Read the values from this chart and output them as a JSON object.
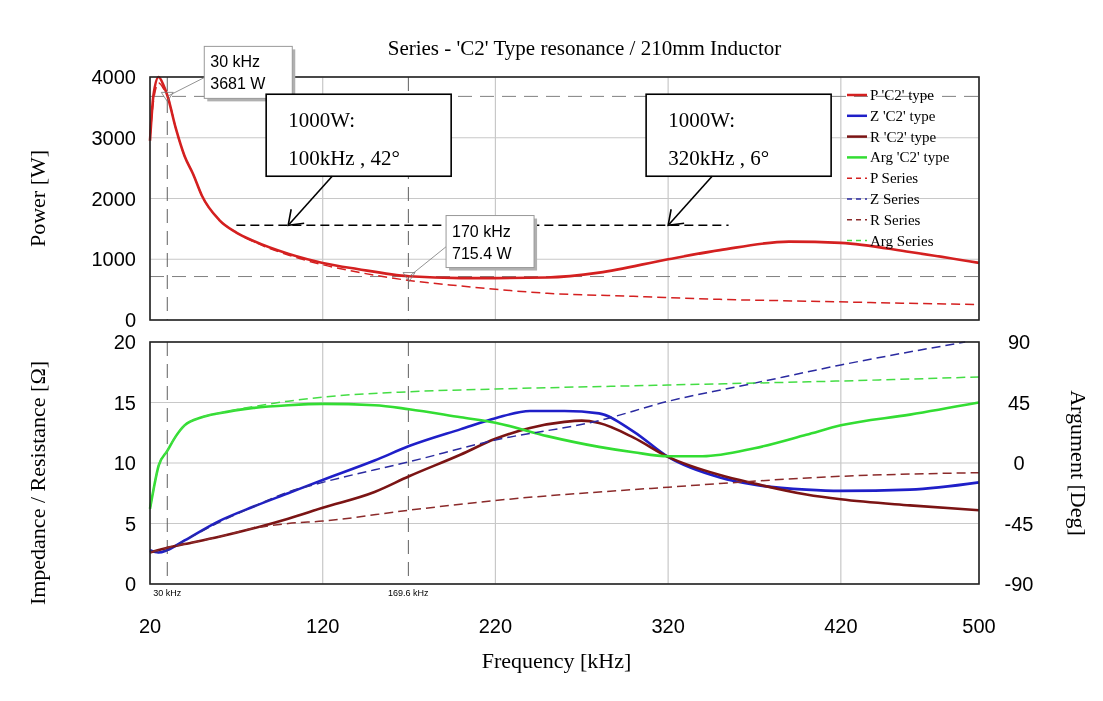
{
  "chart_data": [
    {
      "type": "line",
      "title": "Series - 'C2' Type resonance / 210mm Inductor",
      "ylabel": "Power [W]",
      "xlim": [
        20,
        500
      ],
      "xticks": [
        20,
        120,
        220,
        320,
        420,
        500
      ],
      "ylim": [
        0,
        4000
      ],
      "yticks": [
        0,
        1000,
        2000,
        3000,
        4000
      ],
      "tick_labels": "y",
      "grid": true,
      "legend": "top right",
      "series": [
        {
          "name": "P 'C2' type",
          "color": "#d42020",
          "line_style": "solid",
          "x": [
            20,
            22,
            25,
            28,
            30,
            35,
            40,
            45,
            50,
            60,
            70,
            80,
            100,
            120,
            140,
            170,
            200,
            220,
            250,
            280,
            320,
            350,
            390,
            420,
            460,
            500
          ],
          "values": [
            2950,
            3700,
            4000,
            3850,
            3700,
            3150,
            2700,
            2400,
            2050,
            1650,
            1440,
            1300,
            1090,
            940,
            840,
            720,
            690,
            690,
            700,
            780,
            1000,
            1150,
            1290,
            1270,
            1120,
            940
          ]
        },
        {
          "name": "P Series",
          "color": "#d42020",
          "line_style": "dashed",
          "x": [
            20,
            22,
            25,
            28,
            30,
            35,
            40,
            45,
            50,
            60,
            70,
            80,
            100,
            120,
            140,
            170,
            200,
            250,
            300,
            350,
            400,
            450,
            500
          ],
          "values": [
            3000,
            3600,
            3900,
            3800,
            3700,
            3150,
            2700,
            2400,
            2050,
            1650,
            1440,
            1290,
            1070,
            910,
            790,
            650,
            560,
            440,
            390,
            340,
            310,
            280,
            255
          ]
        },
        {
          "color": "#000000",
          "line_style": "dashed",
          "x": [
            70,
            355
          ],
          "values": [
            1560,
            1560
          ]
        }
      ],
      "ref_lines": [
        {
          "axis": "y",
          "value": 3681,
          "color": "#808080",
          "line_style": "dashed"
        },
        {
          "axis": "y",
          "value": 715.4,
          "color": "#808080",
          "line_style": "dashed"
        },
        {
          "axis": "x",
          "value": 30,
          "color": "#606060",
          "line_style": "dashed"
        },
        {
          "axis": "x",
          "value": 169.6,
          "color": "#606060",
          "line_style": "dashed"
        }
      ],
      "annotations": [
        {
          "text": "30 kHz\n3681 W",
          "x": 30,
          "y": 3681
        },
        {
          "text": "170 kHz\n715.4 W",
          "x": 170,
          "y": 715.4
        },
        {
          "text": "1000W:\n100kHz , 42°",
          "x": 100,
          "y": 1560
        },
        {
          "text": "1000W:\n320kHz , 6°",
          "x": 320,
          "y": 1560
        }
      ]
    },
    {
      "type": "line",
      "xlabel": "Frequency [kHz]",
      "ylabel": "Impedance / Resistance [Ω]",
      "y2label": "Argument [Deg]",
      "xlim": [
        20,
        500
      ],
      "xticks": [
        20,
        120,
        220,
        320,
        420,
        500
      ],
      "ylim": [
        0,
        20
      ],
      "yticks": [
        0,
        5,
        10,
        15,
        20
      ],
      "y2lim": [
        -90,
        90
      ],
      "y2ticks": [
        -90,
        -45,
        0,
        45,
        90
      ],
      "grid": true,
      "series": [
        {
          "name": "Z 'C2' type",
          "color": "#1f1fc8",
          "line_style": "solid",
          "x": [
            20,
            25,
            30,
            40,
            60,
            80,
            100,
            120,
            150,
            170,
            200,
            220,
            240,
            260,
            280,
            300,
            320,
            350,
            370,
            400,
            420,
            460,
            500
          ],
          "values": [
            2.8,
            2.6,
            2.8,
            3.6,
            5.2,
            6.4,
            7.5,
            8.6,
            10.2,
            11.4,
            12.8,
            13.7,
            14.3,
            14.3,
            14.1,
            12.6,
            10.5,
            8.8,
            8.2,
            7.8,
            7.7,
            7.8,
            8.4
          ]
        },
        {
          "name": "R 'C2' type",
          "color": "#7b1414",
          "line_style": "solid",
          "x": [
            20,
            25,
            30,
            40,
            60,
            80,
            100,
            120,
            150,
            170,
            200,
            220,
            240,
            260,
            270,
            280,
            300,
            320,
            350,
            370,
            400,
            420,
            460,
            500
          ],
          "values": [
            2.6,
            2.8,
            3.0,
            3.3,
            3.9,
            4.6,
            5.4,
            6.3,
            7.6,
            8.9,
            10.7,
            12.0,
            12.9,
            13.4,
            13.5,
            13.3,
            12.1,
            10.5,
            9.0,
            8.3,
            7.4,
            7.0,
            6.5,
            6.1
          ]
        },
        {
          "name": "Arg 'C2' type",
          "color": "#33dd33",
          "line_style": "solid",
          "axis": "y2",
          "x": [
            20,
            22,
            25,
            30,
            35,
            40,
            50,
            60,
            80,
            100,
            120,
            150,
            170,
            200,
            220,
            250,
            280,
            300,
            320,
            340,
            370,
            400,
            420,
            460,
            500
          ],
          "values": [
            -34,
            -20,
            -2,
            9,
            20,
            28,
            34,
            37,
            41,
            43,
            44,
            43,
            40,
            34,
            30,
            20,
            12,
            8,
            5,
            5,
            11,
            21,
            28,
            36,
            45
          ]
        },
        {
          "name": "Z Series",
          "color": "#2a2aa0",
          "line_style": "dashed",
          "x": [
            20,
            25,
            30,
            40,
            60,
            80,
            100,
            120,
            170,
            220,
            280,
            320,
            370,
            420,
            492
          ],
          "values": [
            2.8,
            2.6,
            2.8,
            3.6,
            5.1,
            6.4,
            7.6,
            8.4,
            10.1,
            11.9,
            13.5,
            15.1,
            16.6,
            18.1,
            20
          ]
        },
        {
          "name": "R Series",
          "color": "#8b2a2a",
          "line_style": "dashed",
          "x": [
            20,
            25,
            30,
            40,
            60,
            80,
            100,
            120,
            170,
            220,
            320,
            420,
            500
          ],
          "values": [
            2.6,
            2.8,
            3.0,
            3.3,
            3.9,
            4.6,
            5.0,
            5.2,
            6.1,
            6.9,
            8.0,
            8.9,
            9.2
          ]
        },
        {
          "name": "Arg Series",
          "color": "#44dd44",
          "line_style": "dashed",
          "axis": "y2",
          "x": [
            20,
            22,
            25,
            30,
            35,
            40,
            50,
            60,
            80,
            100,
            120,
            170,
            220,
            320,
            420,
            500
          ],
          "values": [
            -34,
            -20,
            -2,
            9,
            20,
            28,
            34,
            37,
            42,
            46,
            49,
            53,
            55,
            58,
            61,
            64
          ]
        }
      ],
      "ref_lines": [
        {
          "axis": "x",
          "value": 30,
          "label": "30 kHz",
          "color": "#606060",
          "line_style": "dashed"
        },
        {
          "axis": "x",
          "value": 169.6,
          "label": "169.6 kHz",
          "color": "#606060",
          "line_style": "dashed"
        }
      ]
    }
  ]
}
